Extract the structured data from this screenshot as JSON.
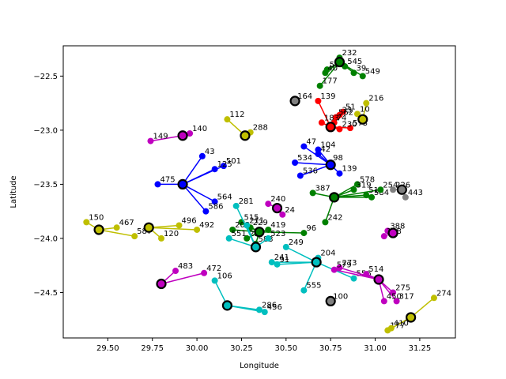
{
  "chart_data": {
    "type": "scatter",
    "title": "",
    "xlabel": "Longitude",
    "ylabel": "Latitude",
    "xlim": [
      29.25,
      31.45
    ],
    "ylim": [
      -24.92,
      -22.22
    ],
    "xticks": [
      29.5,
      29.75,
      30.0,
      30.25,
      30.5,
      30.75,
      31.0,
      31.25
    ],
    "xtick_labels": [
      "29.50",
      "29.75",
      "30.00",
      "30.25",
      "30.50",
      "30.75",
      "31.00",
      "31.25"
    ],
    "yticks": [
      -22.5,
      -23.0,
      -23.5,
      -24.0,
      -24.5
    ],
    "ytick_labels": [
      "−22.5",
      "−23.0",
      "−23.5",
      "−24.0",
      "−24.5"
    ],
    "grid": false,
    "legend": "none",
    "colors": {
      "green": "#008000",
      "red": "#ff0000",
      "blue": "#0000ff",
      "cyan": "#00bfbf",
      "magenta": "#bf00bf",
      "yellow": "#bfbf00",
      "gray": "#808080"
    },
    "clusters": [
      {
        "color": "green",
        "center": [
          30.8,
          -22.37
        ],
        "points": [
          {
            "x": 30.73,
            "y": -22.44,
            "label": "573"
          },
          {
            "x": 30.72,
            "y": -22.47,
            "label": "40"
          },
          {
            "x": 30.83,
            "y": -22.41,
            "label": "545"
          },
          {
            "x": 30.88,
            "y": -22.47,
            "label": "39"
          },
          {
            "x": 30.93,
            "y": -22.5,
            "label": "549"
          },
          {
            "x": 30.69,
            "y": -22.59,
            "label": "177"
          },
          {
            "x": 30.8,
            "y": -22.33,
            "label": "232"
          }
        ]
      },
      {
        "color": "red",
        "center": [
          30.75,
          -22.97
        ],
        "points": [
          {
            "x": 30.68,
            "y": -22.73,
            "label": "139"
          },
          {
            "x": 30.82,
            "y": -22.83,
            "label": "51"
          },
          {
            "x": 30.8,
            "y": -22.86,
            "label": "33"
          },
          {
            "x": 30.78,
            "y": -22.88,
            "label": "562"
          },
          {
            "x": 30.7,
            "y": -22.93,
            "label": "183"
          },
          {
            "x": 30.86,
            "y": -22.98,
            "label": "573"
          },
          {
            "x": 30.77,
            "y": -22.93,
            "label": "74"
          },
          {
            "x": 30.8,
            "y": -22.99,
            "label": "230"
          }
        ]
      },
      {
        "color": "blue",
        "center": [
          30.75,
          -23.32
        ],
        "points": [
          {
            "x": 30.6,
            "y": -23.15,
            "label": "47"
          },
          {
            "x": 30.68,
            "y": -23.22,
            "label": "42"
          },
          {
            "x": 30.75,
            "y": -23.3,
            "label": "98"
          },
          {
            "x": 30.55,
            "y": -23.3,
            "label": "534"
          },
          {
            "x": 30.8,
            "y": -23.4,
            "label": "139"
          },
          {
            "x": 30.58,
            "y": -23.42,
            "label": "536"
          },
          {
            "x": 30.68,
            "y": -23.18,
            "label": "104"
          }
        ]
      },
      {
        "color": "blue",
        "center": [
          29.92,
          -23.5
        ],
        "points": [
          {
            "x": 29.78,
            "y": -23.5,
            "label": "475"
          },
          {
            "x": 30.03,
            "y": -23.24,
            "label": "43"
          },
          {
            "x": 30.15,
            "y": -23.33,
            "label": "501"
          },
          {
            "x": 30.1,
            "y": -23.36,
            "label": "125"
          },
          {
            "x": 30.1,
            "y": -23.66,
            "label": "564"
          },
          {
            "x": 30.05,
            "y": -23.75,
            "label": "586"
          }
        ]
      },
      {
        "color": "green",
        "center": [
          30.35,
          -23.94
        ],
        "points": [
          {
            "x": 30.25,
            "y": -23.85,
            "label": "515"
          },
          {
            "x": 30.3,
            "y": -23.9,
            "label": "229"
          },
          {
            "x": 30.4,
            "y": -23.92,
            "label": "419"
          },
          {
            "x": 30.6,
            "y": -23.95,
            "label": "96"
          },
          {
            "x": 30.2,
            "y": -23.92,
            "label": "202"
          },
          {
            "x": 30.33,
            "y": -24.05,
            "label": "583"
          },
          {
            "x": 30.28,
            "y": -24.0,
            "label": "229"
          }
        ]
      },
      {
        "color": "green",
        "center": [
          30.77,
          -23.62
        ],
        "points": [
          {
            "x": 30.9,
            "y": -23.5,
            "label": "578"
          },
          {
            "x": 30.95,
            "y": -23.6,
            "label": "515"
          },
          {
            "x": 30.98,
            "y": -23.62,
            "label": "584"
          },
          {
            "x": 31.03,
            "y": -23.55,
            "label": "254"
          },
          {
            "x": 30.88,
            "y": -23.55,
            "label": "319"
          },
          {
            "x": 30.72,
            "y": -23.85,
            "label": "242"
          },
          {
            "x": 30.65,
            "y": -23.58,
            "label": "387"
          }
        ]
      },
      {
        "color": "cyan",
        "center": [
          30.33,
          -24.08
        ],
        "points": [
          {
            "x": 30.18,
            "y": -24.0,
            "label": "551"
          },
          {
            "x": 30.4,
            "y": -24.0,
            "label": "523"
          },
          {
            "x": 30.28,
            "y": -23.88,
            "label": "211"
          },
          {
            "x": 30.22,
            "y": -23.7,
            "label": "281"
          }
        ]
      },
      {
        "color": "cyan",
        "center": [
          30.67,
          -24.22
        ],
        "points": [
          {
            "x": 30.5,
            "y": -24.08,
            "label": "249"
          },
          {
            "x": 30.42,
            "y": -24.22,
            "label": "241"
          },
          {
            "x": 30.45,
            "y": -24.24,
            "label": "91"
          },
          {
            "x": 30.6,
            "y": -24.48,
            "label": "555"
          },
          {
            "x": 30.68,
            "y": -24.18,
            "label": "204"
          },
          {
            "x": 30.88,
            "y": -24.37,
            "label": "556"
          }
        ]
      },
      {
        "color": "cyan",
        "center": [
          30.17,
          -24.62
        ],
        "points": [
          {
            "x": 30.1,
            "y": -24.39,
            "label": "106"
          },
          {
            "x": 30.35,
            "y": -24.66,
            "label": "286"
          },
          {
            "x": 30.38,
            "y": -24.68,
            "label": "456"
          }
        ]
      },
      {
        "color": "magenta",
        "center": [
          29.8,
          -24.42
        ],
        "points": [
          {
            "x": 29.88,
            "y": -24.3,
            "label": "483"
          },
          {
            "x": 30.04,
            "y": -24.32,
            "label": "472"
          }
        ]
      },
      {
        "color": "magenta",
        "center": [
          29.92,
          -23.05
        ],
        "points": [
          {
            "x": 29.74,
            "y": -23.1,
            "label": "149"
          },
          {
            "x": 29.96,
            "y": -23.03,
            "label": "140"
          }
        ]
      },
      {
        "color": "magenta",
        "center": [
          31.02,
          -24.38
        ],
        "points": [
          {
            "x": 31.1,
            "y": -24.5,
            "label": "275"
          },
          {
            "x": 31.12,
            "y": -24.58,
            "label": "317"
          },
          {
            "x": 31.05,
            "y": -24.58,
            "label": "450"
          },
          {
            "x": 30.8,
            "y": -24.27,
            "label": "273"
          },
          {
            "x": 30.77,
            "y": -24.29,
            "label": "579"
          },
          {
            "x": 30.95,
            "y": -24.33,
            "label": "514"
          }
        ]
      },
      {
        "color": "magenta",
        "center": [
          31.1,
          -23.95
        ],
        "points": [
          {
            "x": 31.07,
            "y": -23.93,
            "label": "388"
          },
          {
            "x": 31.05,
            "y": -23.98,
            "label": "158"
          }
        ]
      },
      {
        "color": "magenta",
        "center": [
          30.45,
          -23.72
        ],
        "points": [
          {
            "x": 30.4,
            "y": -23.68,
            "label": "240"
          },
          {
            "x": 30.48,
            "y": -23.78,
            "label": "24"
          }
        ]
      },
      {
        "color": "yellow",
        "center": [
          29.45,
          -23.92
        ],
        "points": [
          {
            "x": 29.38,
            "y": -23.85,
            "label": "150"
          },
          {
            "x": 29.55,
            "y": -23.9,
            "label": "467"
          },
          {
            "x": 29.65,
            "y": -23.98,
            "label": "587"
          }
        ]
      },
      {
        "color": "yellow",
        "center": [
          29.73,
          -23.9
        ],
        "points": [
          {
            "x": 29.8,
            "y": -24.0,
            "label": "120"
          },
          {
            "x": 29.9,
            "y": -23.88,
            "label": "496"
          },
          {
            "x": 30.0,
            "y": -23.92,
            "label": "492"
          }
        ]
      },
      {
        "color": "yellow",
        "center": [
          30.93,
          -22.9
        ],
        "points": [
          {
            "x": 30.95,
            "y": -22.75,
            "label": "216"
          },
          {
            "x": 30.9,
            "y": -22.85,
            "label": "10"
          }
        ]
      },
      {
        "color": "yellow",
        "center": [
          31.2,
          -24.73
        ],
        "points": [
          {
            "x": 31.33,
            "y": -24.55,
            "label": "274"
          },
          {
            "x": 31.07,
            "y": -24.85,
            "label": "177"
          },
          {
            "x": 31.09,
            "y": -24.83,
            "label": "410"
          }
        ]
      },
      {
        "color": "yellow",
        "center": [
          30.27,
          -23.05
        ],
        "points": [
          {
            "x": 30.17,
            "y": -22.9,
            "label": "112"
          },
          {
            "x": 30.3,
            "y": -23.02,
            "label": "288"
          }
        ]
      },
      {
        "color": "gray",
        "center": [
          31.15,
          -23.55
        ],
        "points": [
          {
            "x": 31.1,
            "y": -23.55,
            "label": "226"
          },
          {
            "x": 31.17,
            "y": -23.62,
            "label": "443"
          }
        ]
      },
      {
        "color": "gray",
        "center": [
          30.75,
          -24.58
        ],
        "points": [
          {
            "x": 30.75,
            "y": -24.58,
            "label": "100"
          }
        ]
      },
      {
        "color": "gray",
        "center": [
          30.55,
          -22.73
        ],
        "points": [
          {
            "x": 30.55,
            "y": -22.73,
            "label": "164"
          }
        ]
      }
    ]
  }
}
